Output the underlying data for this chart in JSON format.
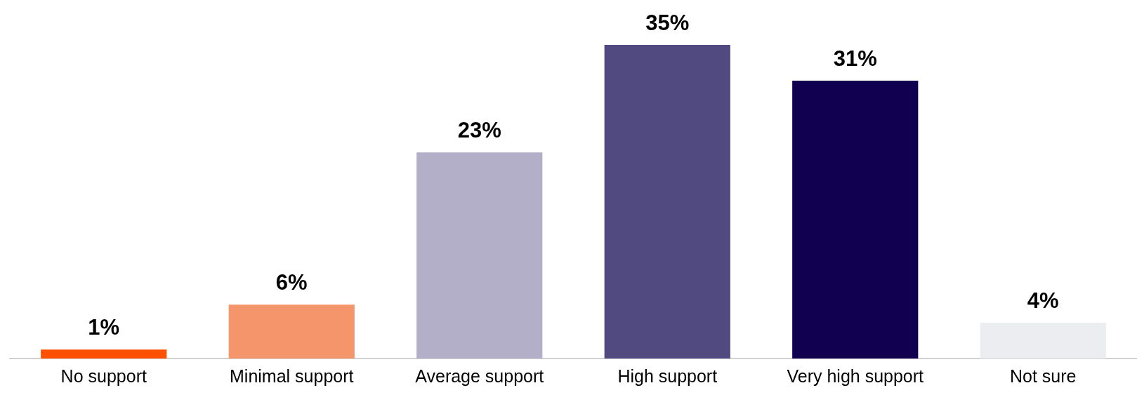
{
  "chart_data": {
    "type": "bar",
    "categories": [
      "No support",
      "Minimal support",
      "Average support",
      "High support",
      "Very high support",
      "Not sure"
    ],
    "values": [
      1,
      6,
      23,
      35,
      31,
      4
    ],
    "colors": [
      "#ff5000",
      "#f4956b",
      "#b3afc8",
      "#514a80",
      "#10004f",
      "#ebedf0"
    ],
    "value_labels": [
      "1%",
      "6%",
      "23%",
      "35%",
      "31%",
      "4%"
    ],
    "ylim": [
      0,
      35
    ],
    "grid": false,
    "legend": false
  }
}
